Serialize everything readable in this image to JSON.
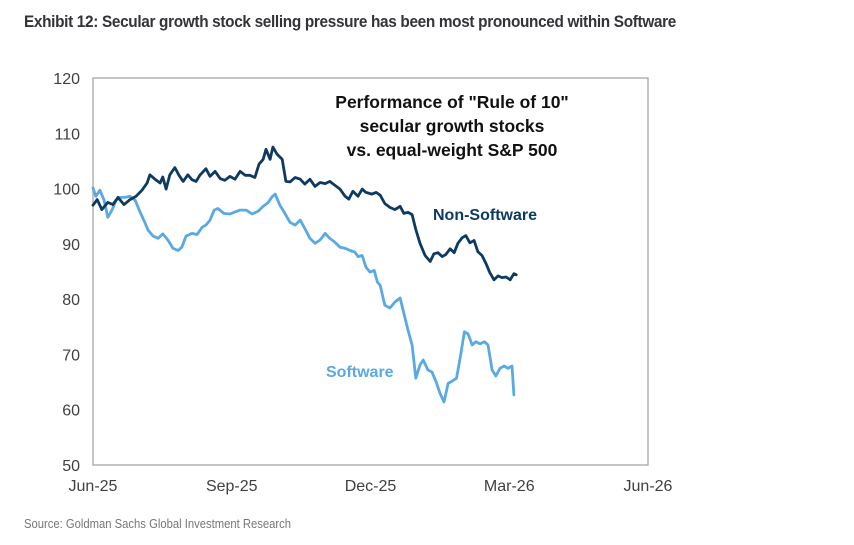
{
  "exhibit": {
    "title": "Exhibit 12: Secular growth stock selling pressure has been most pronounced within Software",
    "source": "Source: Goldman Sachs Global Investment Research"
  },
  "chart_data": {
    "type": "line",
    "title_lines": [
      "Performance of \"Rule of 10\"",
      "secular growth stocks",
      "vs. equal-weight S&P 500"
    ],
    "xlabel": "",
    "ylabel": "",
    "x_unit": "months since Jun-25",
    "xlim": [
      0,
      12
    ],
    "ylim": [
      50,
      120
    ],
    "x_ticks": [
      {
        "pos": 0,
        "label": "Jun-25"
      },
      {
        "pos": 3,
        "label": "Sep-25"
      },
      {
        "pos": 6,
        "label": "Dec-25"
      },
      {
        "pos": 9,
        "label": "Mar-26"
      },
      {
        "pos": 12,
        "label": "Jun-26"
      }
    ],
    "y_ticks": [
      50,
      60,
      70,
      80,
      90,
      100,
      110,
      120
    ],
    "grid": false,
    "legend": "inline labels",
    "series": [
      {
        "name": "Non-Software",
        "color": "#0e3a62",
        "label_position": "right of line, above",
        "x": [
          0.0,
          0.09,
          0.19,
          0.32,
          0.43,
          0.54,
          0.67,
          0.8,
          0.93,
          1.06,
          1.17,
          1.23,
          1.34,
          1.45,
          1.51,
          1.58,
          1.66,
          1.77,
          1.86,
          1.95,
          2.05,
          2.14,
          2.23,
          2.31,
          2.44,
          2.53,
          2.64,
          2.75,
          2.85,
          2.96,
          3.07,
          3.18,
          3.29,
          3.39,
          3.5,
          3.59,
          3.68,
          3.74,
          3.83,
          3.89,
          3.98,
          4.09,
          4.17,
          4.26,
          4.37,
          4.48,
          4.58,
          4.69,
          4.8,
          4.91,
          5.02,
          5.12,
          5.23,
          5.34,
          5.45,
          5.53,
          5.62,
          5.73,
          5.82,
          5.9,
          6.03,
          6.12,
          6.21,
          6.31,
          6.42,
          6.53,
          6.64,
          6.72,
          6.81,
          6.9,
          6.98,
          7.07,
          7.18,
          7.29,
          7.37,
          7.46,
          7.55,
          7.63,
          7.72,
          7.81,
          7.89,
          7.98,
          8.06,
          8.15,
          8.24,
          8.32,
          8.41,
          8.5,
          8.58,
          8.67,
          8.76,
          8.84,
          8.93,
          9.02,
          9.1,
          9.15
        ],
        "values": [
          97.0,
          98.0,
          96.2,
          97.5,
          97.1,
          98.4,
          97.1,
          98.0,
          98.6,
          99.7,
          101.0,
          102.5,
          101.7,
          101.0,
          102.1,
          99.9,
          102.5,
          103.8,
          102.4,
          101.3,
          102.5,
          101.6,
          101.3,
          102.4,
          103.6,
          102.2,
          103.1,
          101.8,
          101.5,
          102.2,
          101.7,
          103.1,
          102.4,
          102.4,
          102.0,
          104.4,
          105.3,
          107.1,
          105.3,
          107.5,
          106.2,
          105.3,
          101.3,
          101.2,
          102.0,
          101.7,
          100.8,
          101.7,
          100.4,
          101.1,
          100.9,
          101.3,
          100.6,
          99.9,
          98.6,
          98.1,
          99.5,
          98.6,
          99.9,
          99.3,
          99.0,
          99.3,
          98.8,
          97.3,
          96.6,
          96.2,
          96.8,
          95.5,
          95.7,
          95.3,
          92.6,
          90.1,
          87.9,
          86.8,
          88.2,
          88.4,
          87.7,
          88.1,
          89.1,
          88.4,
          90.1,
          91.1,
          91.5,
          90.2,
          90.6,
          88.6,
          87.9,
          86.4,
          84.8,
          83.5,
          84.2,
          83.9,
          84.0,
          83.5,
          84.6,
          84.4
        ]
      },
      {
        "name": "Software",
        "color": "#5aa9e2",
        "label_position": "left of line, below",
        "x": [
          0.0,
          0.06,
          0.15,
          0.24,
          0.32,
          0.41,
          0.5,
          0.58,
          0.69,
          0.8,
          0.91,
          1.02,
          1.12,
          1.19,
          1.3,
          1.41,
          1.51,
          1.62,
          1.73,
          1.84,
          1.92,
          2.01,
          2.14,
          2.25,
          2.36,
          2.44,
          2.53,
          2.62,
          2.7,
          2.83,
          2.96,
          3.05,
          3.18,
          3.31,
          3.44,
          3.57,
          3.68,
          3.78,
          3.87,
          3.94,
          4.04,
          4.15,
          4.26,
          4.37,
          4.48,
          4.58,
          4.69,
          4.8,
          4.91,
          5.02,
          5.12,
          5.23,
          5.34,
          5.45,
          5.56,
          5.66,
          5.73,
          5.82,
          5.9,
          5.99,
          6.08,
          6.15,
          6.21,
          6.31,
          6.42,
          6.53,
          6.64,
          6.72,
          6.81,
          6.9,
          6.98,
          7.07,
          7.14,
          7.24,
          7.33,
          7.42,
          7.5,
          7.59,
          7.68,
          7.77,
          7.86,
          7.94,
          8.03,
          8.11,
          8.2,
          8.28,
          8.37,
          8.46,
          8.54,
          8.63,
          8.71,
          8.8,
          8.89,
          8.97,
          9.06,
          9.1
        ],
        "values": [
          100.1,
          98.6,
          99.7,
          97.9,
          94.8,
          96.1,
          97.9,
          98.4,
          98.4,
          98.6,
          97.9,
          95.7,
          93.9,
          92.5,
          91.4,
          91.0,
          91.8,
          90.7,
          89.2,
          88.8,
          89.4,
          91.4,
          91.9,
          91.7,
          93.0,
          93.4,
          94.3,
          96.1,
          96.4,
          95.5,
          95.4,
          95.7,
          96.1,
          96.1,
          95.4,
          95.9,
          96.8,
          97.4,
          98.5,
          99.0,
          97.0,
          95.5,
          93.9,
          93.4,
          94.3,
          92.8,
          91.0,
          90.1,
          90.7,
          91.9,
          91.0,
          90.3,
          89.4,
          89.2,
          88.8,
          88.5,
          87.7,
          87.9,
          85.8,
          84.9,
          85.2,
          83.1,
          82.5,
          78.9,
          78.4,
          79.5,
          80.2,
          77.5,
          74.4,
          71.7,
          65.7,
          68.1,
          69.0,
          67.2,
          66.8,
          65.0,
          63.0,
          61.4,
          64.8,
          65.2,
          65.7,
          69.4,
          74.1,
          73.7,
          71.7,
          72.3,
          71.9,
          72.3,
          71.7,
          67.2,
          66.1,
          67.5,
          67.9,
          67.5,
          67.9,
          62.7
        ]
      }
    ]
  }
}
